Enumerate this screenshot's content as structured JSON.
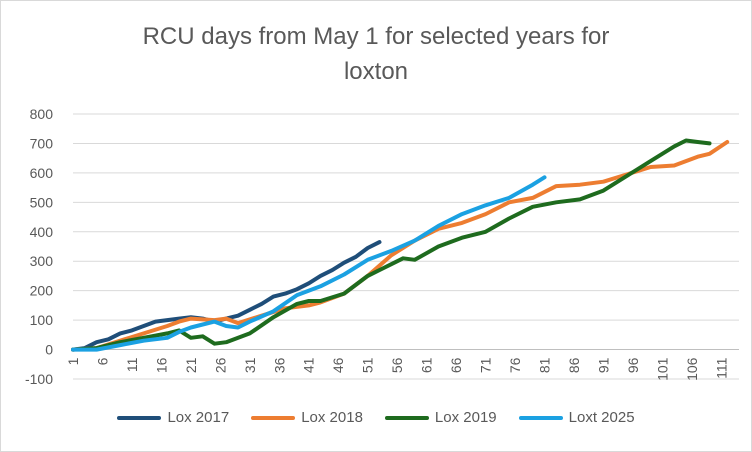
{
  "chart_data": {
    "type": "line",
    "title_lines": [
      "RCU days from May 1 for selected years for",
      "loxton"
    ],
    "xlabel": "",
    "ylabel": "",
    "x_ticks": [
      1,
      6,
      11,
      16,
      21,
      26,
      31,
      36,
      41,
      46,
      51,
      56,
      61,
      66,
      71,
      76,
      81,
      86,
      91,
      96,
      101,
      106,
      111
    ],
    "y_ticks": [
      -100,
      0,
      100,
      200,
      300,
      400,
      500,
      600,
      700,
      800
    ],
    "xlim": [
      1,
      114
    ],
    "ylim": [
      -100,
      800
    ],
    "grid": "horizontal",
    "legend_position": "bottom",
    "series": [
      {
        "name": "Lox 2017",
        "color": "#1f4e79",
        "x": [
          1,
          3,
          5,
          7,
          9,
          11,
          13,
          15,
          17,
          19,
          21,
          23,
          25,
          27,
          29,
          31,
          33,
          35,
          37,
          39,
          41,
          43,
          45,
          47,
          49,
          51,
          53
        ],
        "values": [
          0,
          5,
          25,
          35,
          55,
          65,
          80,
          95,
          100,
          105,
          110,
          105,
          95,
          105,
          115,
          135,
          155,
          180,
          190,
          205,
          225,
          250,
          270,
          295,
          315,
          345,
          365
        ]
      },
      {
        "name": "Lox 2018",
        "color": "#ed7d31",
        "x": [
          1,
          5,
          9,
          13,
          17,
          19,
          21,
          25,
          27,
          29,
          33,
          37,
          41,
          43,
          47,
          51,
          55,
          59,
          63,
          67,
          71,
          75,
          79,
          83,
          87,
          91,
          95,
          99,
          103,
          107,
          109,
          112
        ],
        "values": [
          0,
          5,
          30,
          55,
          80,
          95,
          105,
          100,
          105,
          90,
          115,
          140,
          150,
          160,
          190,
          250,
          320,
          370,
          410,
          430,
          460,
          500,
          515,
          555,
          560,
          570,
          595,
          620,
          625,
          655,
          665,
          705
        ]
      },
      {
        "name": "Lox 2019",
        "color": "#1e6b1e",
        "x": [
          1,
          5,
          9,
          13,
          17,
          19,
          21,
          23,
          25,
          27,
          31,
          35,
          39,
          41,
          43,
          47,
          51,
          55,
          57,
          59,
          63,
          67,
          71,
          75,
          79,
          83,
          87,
          91,
          95,
          99,
          103,
          105,
          107,
          109
        ],
        "values": [
          0,
          5,
          25,
          40,
          55,
          65,
          40,
          45,
          20,
          25,
          55,
          110,
          155,
          165,
          165,
          190,
          250,
          290,
          310,
          305,
          350,
          380,
          400,
          445,
          485,
          500,
          510,
          540,
          590,
          640,
          690,
          710,
          705,
          700
        ]
      },
      {
        "name": "Loxt 2025",
        "color": "#1ba1e2",
        "x": [
          1,
          5,
          9,
          13,
          17,
          19,
          21,
          23,
          25,
          27,
          29,
          31,
          35,
          39,
          43,
          47,
          51,
          55,
          59,
          63,
          67,
          71,
          75,
          79,
          81
        ],
        "values": [
          0,
          0,
          15,
          30,
          40,
          60,
          75,
          85,
          95,
          80,
          75,
          95,
          130,
          185,
          215,
          255,
          305,
          335,
          370,
          420,
          460,
          490,
          515,
          560,
          585
        ]
      }
    ]
  }
}
